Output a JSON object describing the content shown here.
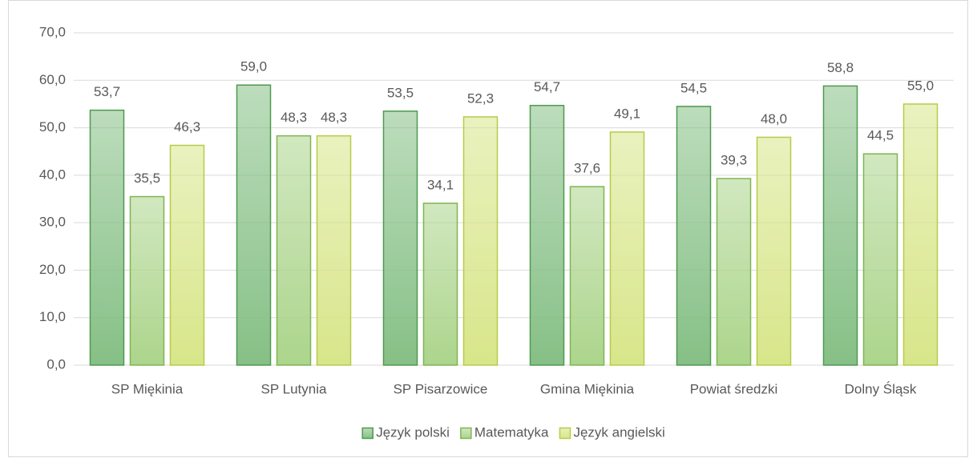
{
  "chart_data": {
    "type": "bar",
    "categories": [
      "SP Miękinia",
      "SP Lutynia",
      "SP Pisarzowice",
      "Gmina Miękinia",
      "Powiat średzki",
      "Dolny Śląsk"
    ],
    "series": [
      {
        "name": "Język polski",
        "color": "#86c086",
        "edgecolor": "#4e9a4e",
        "values": [
          53.7,
          59.0,
          53.5,
          54.7,
          54.5,
          58.8
        ],
        "value_labels": [
          "53,7",
          "59,0",
          "53,5",
          "54,7",
          "54,5",
          "58,8"
        ]
      },
      {
        "name": "Matematyka",
        "color": "#acd58c",
        "edgecolor": "#7fb552",
        "values": [
          35.5,
          48.3,
          34.1,
          37.6,
          39.3,
          44.5
        ],
        "value_labels": [
          "35,5",
          "48,3",
          "34,1",
          "37,6",
          "39,3",
          "44,5"
        ]
      },
      {
        "name": "Język angielski",
        "color": "#d8e68a",
        "edgecolor": "#b6cc48",
        "values": [
          46.3,
          48.3,
          52.3,
          49.1,
          48.0,
          55.0
        ],
        "value_labels": [
          "46,3",
          "48,3",
          "52,3",
          "49,1",
          "48,0",
          "55,0"
        ]
      }
    ],
    "ylim": [
      0,
      70
    ],
    "yticks": [
      {
        "value": 0,
        "label": "0,0"
      },
      {
        "value": 10,
        "label": "10,0"
      },
      {
        "value": 20,
        "label": "20,0"
      },
      {
        "value": 30,
        "label": "30,0"
      },
      {
        "value": 40,
        "label": "40,0"
      },
      {
        "value": 50,
        "label": "50,0"
      },
      {
        "value": 60,
        "label": "60,0"
      },
      {
        "value": 70,
        "label": "70,0"
      }
    ],
    "grid": true,
    "legend": "bottom"
  }
}
